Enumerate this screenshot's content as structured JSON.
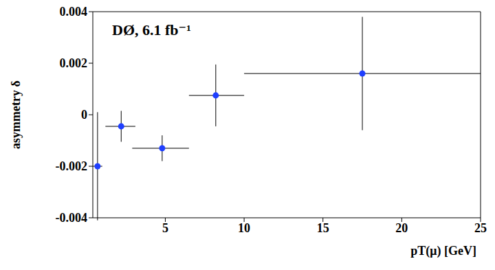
{
  "chart_data": {
    "type": "scatter",
    "title": "DØ, 6.1 fb⁻¹",
    "x_label": "pT(μ) [GeV]",
    "y_label": "asymmetry δ",
    "x": [
      0.7,
      2.2,
      4.8,
      8.2,
      17.5
    ],
    "values": [
      -0.002,
      -0.00045,
      -0.0013,
      0.00075,
      0.0016
    ],
    "x_errors": [
      [
        0.3,
        0.3
      ],
      [
        1.0,
        0.9
      ],
      [
        1.9,
        1.7
      ],
      [
        1.7,
        1.8
      ],
      [
        7.5,
        7.5
      ]
    ],
    "y_errors": [
      0.0021,
      0.0006,
      0.0005,
      0.0012,
      0.0022
    ],
    "xlim": [
      0.4,
      25
    ],
    "xticks": [
      5,
      10,
      15,
      20,
      25
    ],
    "ylim": [
      -0.004,
      0.004
    ],
    "yticks": [
      -0.004,
      -0.002,
      0,
      0.002,
      0.004
    ],
    "color": "#1f3fff",
    "marker": "circle",
    "grid": false
  }
}
